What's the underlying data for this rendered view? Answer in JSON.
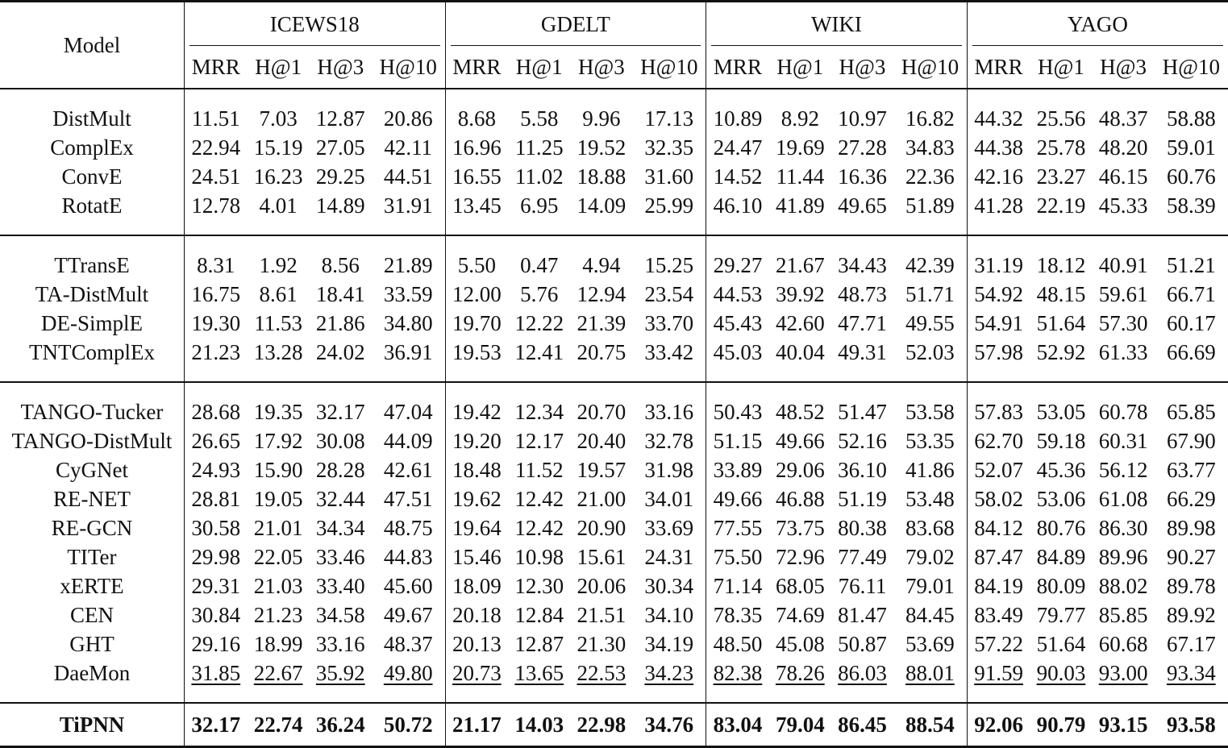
{
  "header": {
    "model_label": "Model",
    "datasets": [
      "ICEWS18",
      "GDELT",
      "WIKI",
      "YAGO"
    ],
    "metrics": [
      "MRR",
      "H@1",
      "H@3",
      "H@10"
    ]
  },
  "groups": [
    {
      "rows": [
        {
          "model": "DistMult",
          "values": [
            "11.51",
            "7.03",
            "12.87",
            "20.86",
            "8.68",
            "5.58",
            "9.96",
            "17.13",
            "10.89",
            "8.92",
            "10.97",
            "16.82",
            "44.32",
            "25.56",
            "48.37",
            "58.88"
          ]
        },
        {
          "model": "ComplEx",
          "values": [
            "22.94",
            "15.19",
            "27.05",
            "42.11",
            "16.96",
            "11.25",
            "19.52",
            "32.35",
            "24.47",
            "19.69",
            "27.28",
            "34.83",
            "44.38",
            "25.78",
            "48.20",
            "59.01"
          ]
        },
        {
          "model": "ConvE",
          "values": [
            "24.51",
            "16.23",
            "29.25",
            "44.51",
            "16.55",
            "11.02",
            "18.88",
            "31.60",
            "14.52",
            "11.44",
            "16.36",
            "22.36",
            "42.16",
            "23.27",
            "46.15",
            "60.76"
          ]
        },
        {
          "model": "RotatE",
          "values": [
            "12.78",
            "4.01",
            "14.89",
            "31.91",
            "13.45",
            "6.95",
            "14.09",
            "25.99",
            "46.10",
            "41.89",
            "49.65",
            "51.89",
            "41.28",
            "22.19",
            "45.33",
            "58.39"
          ]
        }
      ]
    },
    {
      "rows": [
        {
          "model": "TTransE",
          "values": [
            "8.31",
            "1.92",
            "8.56",
            "21.89",
            "5.50",
            "0.47",
            "4.94",
            "15.25",
            "29.27",
            "21.67",
            "34.43",
            "42.39",
            "31.19",
            "18.12",
            "40.91",
            "51.21"
          ]
        },
        {
          "model": "TA-DistMult",
          "values": [
            "16.75",
            "8.61",
            "18.41",
            "33.59",
            "12.00",
            "5.76",
            "12.94",
            "23.54",
            "44.53",
            "39.92",
            "48.73",
            "51.71",
            "54.92",
            "48.15",
            "59.61",
            "66.71"
          ]
        },
        {
          "model": "DE-SimplE",
          "values": [
            "19.30",
            "11.53",
            "21.86",
            "34.80",
            "19.70",
            "12.22",
            "21.39",
            "33.70",
            "45.43",
            "42.60",
            "47.71",
            "49.55",
            "54.91",
            "51.64",
            "57.30",
            "60.17"
          ]
        },
        {
          "model": "TNTComplEx",
          "values": [
            "21.23",
            "13.28",
            "24.02",
            "36.91",
            "19.53",
            "12.41",
            "20.75",
            "33.42",
            "45.03",
            "40.04",
            "49.31",
            "52.03",
            "57.98",
            "52.92",
            "61.33",
            "66.69"
          ]
        }
      ]
    },
    {
      "rows": [
        {
          "model": "TANGO-Tucker",
          "values": [
            "28.68",
            "19.35",
            "32.17",
            "47.04",
            "19.42",
            "12.34",
            "20.70",
            "33.16",
            "50.43",
            "48.52",
            "51.47",
            "53.58",
            "57.83",
            "53.05",
            "60.78",
            "65.85"
          ]
        },
        {
          "model": "TANGO-DistMult",
          "values": [
            "26.65",
            "17.92",
            "30.08",
            "44.09",
            "19.20",
            "12.17",
            "20.40",
            "32.78",
            "51.15",
            "49.66",
            "52.16",
            "53.35",
            "62.70",
            "59.18",
            "60.31",
            "67.90"
          ]
        },
        {
          "model": "CyGNet",
          "values": [
            "24.93",
            "15.90",
            "28.28",
            "42.61",
            "18.48",
            "11.52",
            "19.57",
            "31.98",
            "33.89",
            "29.06",
            "36.10",
            "41.86",
            "52.07",
            "45.36",
            "56.12",
            "63.77"
          ]
        },
        {
          "model": "RE-NET",
          "values": [
            "28.81",
            "19.05",
            "32.44",
            "47.51",
            "19.62",
            "12.42",
            "21.00",
            "34.01",
            "49.66",
            "46.88",
            "51.19",
            "53.48",
            "58.02",
            "53.06",
            "61.08",
            "66.29"
          ]
        },
        {
          "model": "RE-GCN",
          "values": [
            "30.58",
            "21.01",
            "34.34",
            "48.75",
            "19.64",
            "12.42",
            "20.90",
            "33.69",
            "77.55",
            "73.75",
            "80.38",
            "83.68",
            "84.12",
            "80.76",
            "86.30",
            "89.98"
          ]
        },
        {
          "model": "TITer",
          "values": [
            "29.98",
            "22.05",
            "33.46",
            "44.83",
            "15.46",
            "10.98",
            "15.61",
            "24.31",
            "75.50",
            "72.96",
            "77.49",
            "79.02",
            "87.47",
            "84.89",
            "89.96",
            "90.27"
          ]
        },
        {
          "model": "xERTE",
          "values": [
            "29.31",
            "21.03",
            "33.40",
            "45.60",
            "18.09",
            "12.30",
            "20.06",
            "30.34",
            "71.14",
            "68.05",
            "76.11",
            "79.01",
            "84.19",
            "80.09",
            "88.02",
            "89.78"
          ]
        },
        {
          "model": "CEN",
          "values": [
            "30.84",
            "21.23",
            "34.58",
            "49.67",
            "20.18",
            "12.84",
            "21.51",
            "34.10",
            "78.35",
            "74.69",
            "81.47",
            "84.45",
            "83.49",
            "79.77",
            "85.85",
            "89.92"
          ]
        },
        {
          "model": "GHT",
          "values": [
            "29.16",
            "18.99",
            "33.16",
            "48.37",
            "20.13",
            "12.87",
            "21.30",
            "34.19",
            "48.50",
            "45.08",
            "50.87",
            "53.69",
            "57.22",
            "51.64",
            "60.68",
            "67.17"
          ]
        },
        {
          "model": "DaeMon",
          "underlined": true,
          "values": [
            "31.85",
            "22.67",
            "35.92",
            "49.80",
            "20.73",
            "13.65",
            "22.53",
            "34.23",
            "82.38",
            "78.26",
            "86.03",
            "88.01",
            "91.59",
            "90.03",
            "93.00",
            "93.34"
          ]
        }
      ]
    }
  ],
  "final_row": {
    "model": "TiPNN",
    "values": [
      "32.17",
      "22.74",
      "36.24",
      "50.72",
      "21.17",
      "14.03",
      "22.98",
      "34.76",
      "83.04",
      "79.04",
      "86.45",
      "88.54",
      "92.06",
      "90.79",
      "93.15",
      "93.58"
    ]
  }
}
